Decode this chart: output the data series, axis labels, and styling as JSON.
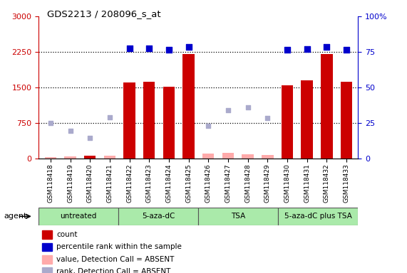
{
  "title": "GDS2213 / 208096_s_at",
  "samples": [
    "GSM118418",
    "GSM118419",
    "GSM118420",
    "GSM118421",
    "GSM118422",
    "GSM118423",
    "GSM118424",
    "GSM118425",
    "GSM118426",
    "GSM118427",
    "GSM118428",
    "GSM118429",
    "GSM118430",
    "GSM118431",
    "GSM118432",
    "GSM118433"
  ],
  "group_boundaries": [
    {
      "start": 0,
      "end": 4,
      "label": "untreated"
    },
    {
      "start": 4,
      "end": 8,
      "label": "5-aza-dC"
    },
    {
      "start": 8,
      "end": 12,
      "label": "TSA"
    },
    {
      "start": 12,
      "end": 16,
      "label": "5-aza-dC plus TSA"
    }
  ],
  "count_present": [
    null,
    null,
    50,
    null,
    1600,
    1620,
    1520,
    2200,
    null,
    null,
    null,
    null,
    1550,
    1650,
    2200,
    1620
  ],
  "count_absent": [
    30,
    40,
    null,
    60,
    null,
    null,
    null,
    null,
    100,
    110,
    80,
    70,
    null,
    null,
    null,
    null
  ],
  "rank_present": [
    null,
    null,
    null,
    null,
    2330,
    2320,
    2290,
    2360,
    null,
    null,
    null,
    null,
    2300,
    2310,
    2360,
    2300
  ],
  "rank_absent": [
    750,
    580,
    430,
    870,
    null,
    null,
    null,
    null,
    680,
    1020,
    1080,
    850,
    null,
    null,
    null,
    null
  ],
  "ylim_left": [
    0,
    3000
  ],
  "ylim_right": [
    0,
    100
  ],
  "yticks_left": [
    0,
    750,
    1500,
    2250,
    3000
  ],
  "yticks_right": [
    0,
    25,
    50,
    75,
    100
  ],
  "ytick_labels_left": [
    "0",
    "750",
    "1500",
    "2250",
    "3000"
  ],
  "ytick_labels_right": [
    "0",
    "25",
    "50",
    "75",
    "100%"
  ],
  "background_color": "#ffffff",
  "bar_color_present": "#cc0000",
  "bar_color_absent": "#ffaaaa",
  "dot_color_present": "#0000cc",
  "dot_color_absent": "#aaaacc",
  "left_axis_color": "#cc0000",
  "right_axis_color": "#0000cc",
  "agent_label": "agent",
  "group_fill": "#aaeaaa",
  "group_edge": "#555555",
  "legend_items": [
    {
      "label": "count",
      "color": "#cc0000"
    },
    {
      "label": "percentile rank within the sample",
      "color": "#0000cc"
    },
    {
      "label": "value, Detection Call = ABSENT",
      "color": "#ffaaaa"
    },
    {
      "label": "rank, Detection Call = ABSENT",
      "color": "#aaaacc"
    }
  ]
}
